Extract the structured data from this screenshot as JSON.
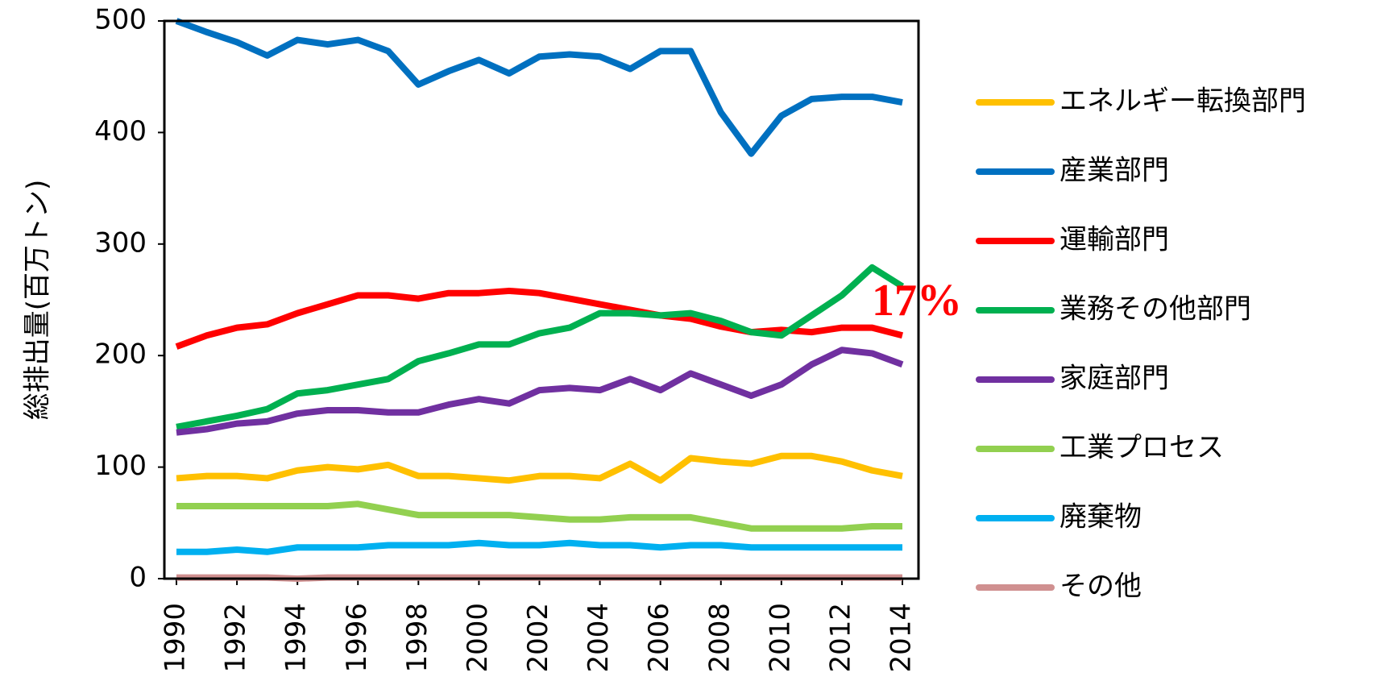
{
  "chart_data": {
    "type": "line",
    "y_label": "総排出量(百万トン)",
    "annotation": "17%",
    "x": [
      1990,
      1991,
      1992,
      1993,
      1994,
      1995,
      1996,
      1997,
      1998,
      1999,
      2000,
      2001,
      2002,
      2003,
      2004,
      2005,
      2006,
      2007,
      2008,
      2009,
      2010,
      2011,
      2012,
      2013,
      2014
    ],
    "xlim": [
      1990,
      2014
    ],
    "xticks": [
      1990,
      1992,
      1994,
      1996,
      1998,
      2000,
      2002,
      2004,
      2006,
      2008,
      2010,
      2012,
      2014
    ],
    "ylim": [
      0,
      500
    ],
    "yticks": [
      0,
      100,
      200,
      300,
      400,
      500
    ],
    "series": [
      {
        "name": "エネルギー転換部門",
        "color": "#ffc000",
        "values": [
          90,
          92,
          92,
          90,
          97,
          100,
          98,
          102,
          92,
          92,
          90,
          88,
          92,
          92,
          90,
          103,
          88,
          108,
          105,
          103,
          110,
          110,
          105,
          97,
          92
        ]
      },
      {
        "name": "産業部門",
        "color": "#0070c0",
        "values": [
          500,
          490,
          481,
          469,
          483,
          479,
          483,
          473,
          443,
          455,
          465,
          453,
          468,
          470,
          468,
          457,
          473,
          473,
          418,
          381,
          415,
          430,
          432,
          432,
          427
        ]
      },
      {
        "name": "運輸部門",
        "color": "#ff0000",
        "values": [
          208,
          218,
          225,
          228,
          238,
          246,
          254,
          254,
          251,
          256,
          256,
          258,
          256,
          251,
          246,
          241,
          236,
          233,
          226,
          221,
          223,
          221,
          225,
          225,
          218
        ]
      },
      {
        "name": "業務その他部門",
        "color": "#00b050",
        "values": [
          136,
          141,
          146,
          152,
          166,
          169,
          174,
          179,
          195,
          202,
          210,
          210,
          220,
          225,
          238,
          238,
          236,
          238,
          231,
          221,
          218,
          236,
          254,
          279,
          262
        ]
      },
      {
        "name": "家庭部門",
        "color": "#7030a0",
        "values": [
          131,
          134,
          139,
          141,
          148,
          151,
          151,
          149,
          149,
          156,
          161,
          157,
          169,
          171,
          169,
          179,
          169,
          184,
          174,
          164,
          174,
          192,
          205,
          202,
          192
        ]
      },
      {
        "name": "工業プロセス",
        "color": "#92d050",
        "values": [
          65,
          65,
          65,
          65,
          65,
          65,
          67,
          62,
          57,
          57,
          57,
          57,
          55,
          53,
          53,
          55,
          55,
          55,
          50,
          45,
          45,
          45,
          45,
          47,
          47
        ]
      },
      {
        "name": "廃棄物",
        "color": "#00b0f0",
        "values": [
          24,
          24,
          26,
          24,
          28,
          28,
          28,
          30,
          30,
          30,
          32,
          30,
          30,
          32,
          30,
          30,
          28,
          30,
          30,
          28,
          28,
          28,
          28,
          28,
          28
        ]
      },
      {
        "name": "その他",
        "color": "#d09090",
        "values": [
          1,
          1,
          1,
          1,
          0,
          1,
          1,
          1,
          1,
          1,
          1,
          1,
          1,
          1,
          1,
          1,
          1,
          1,
          1,
          1,
          1,
          1,
          1,
          1,
          1
        ]
      }
    ]
  }
}
